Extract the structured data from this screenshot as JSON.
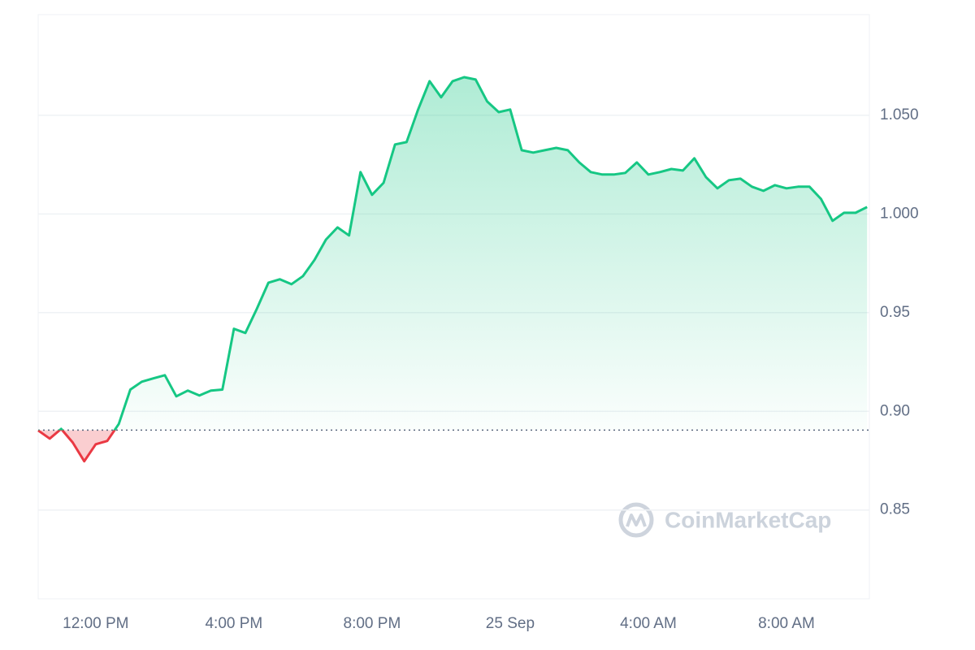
{
  "chart_data": {
    "type": "line",
    "values": [
      0.8903,
      0.8862,
      0.8911,
      0.8842,
      0.8747,
      0.8833,
      0.885,
      0.8936,
      0.911,
      0.915,
      0.9167,
      0.9183,
      0.9076,
      0.9105,
      0.908,
      0.9105,
      0.911,
      0.9418,
      0.9397,
      0.952,
      0.9652,
      0.9669,
      0.9644,
      0.9685,
      0.9767,
      0.987,
      0.9932,
      0.9891,
      1.0212,
      1.0097,
      1.0158,
      1.0352,
      1.0364,
      1.0529,
      1.0673,
      1.0591,
      1.0673,
      1.0693,
      1.0681,
      1.057,
      1.0516,
      1.0529,
      1.0323,
      1.0311,
      1.0323,
      1.0335,
      1.0323,
      1.0261,
      1.0212,
      1.02,
      1.02,
      1.0208,
      1.0261,
      1.02,
      1.0212,
      1.0228,
      1.022,
      1.0282,
      1.0187,
      1.013,
      1.0171,
      1.0179,
      1.0138,
      1.0117,
      1.0146,
      1.013,
      1.0138,
      1.0138,
      1.0076,
      0.9965,
      1.0006,
      1.0006,
      1.0035
    ],
    "color": "#16c784",
    "below_color": "#ea3943",
    "baseline": 0.8905,
    "xlim": [
      0,
      72.2
    ],
    "xticks": [
      {
        "value": 5,
        "label": "12:00 PM"
      },
      {
        "value": 17,
        "label": "4:00 PM"
      },
      {
        "value": 29,
        "label": "8:00 PM"
      },
      {
        "value": 41,
        "label": "25 Sep"
      },
      {
        "value": 53,
        "label": "4:00 AM"
      },
      {
        "value": 65,
        "label": "8:00 AM"
      }
    ],
    "ylim": [
      0.805,
      1.101
    ],
    "yticks": [
      0.85,
      {
        "value": 0.9,
        "label": "0.90"
      },
      0.95,
      {
        "value": 1.0,
        "label": "1.000"
      },
      {
        "value": 1.05,
        "label": "1.050"
      }
    ],
    "grid": true,
    "watermark": "CoinMarketCap"
  }
}
